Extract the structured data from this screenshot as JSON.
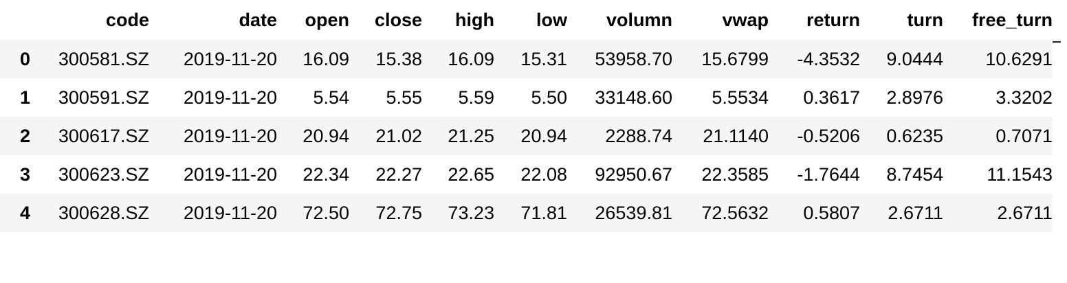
{
  "table": {
    "columns": [
      "",
      "code",
      "date",
      "open",
      "close",
      "high",
      "low",
      "volumn",
      "vwap",
      "return",
      "turn",
      "free_turn"
    ],
    "rows": [
      {
        "index": "0",
        "cells": [
          "300581.SZ",
          "2019-11-20",
          "16.09",
          "15.38",
          "16.09",
          "15.31",
          "53958.70",
          "15.6799",
          "-4.3532",
          "9.0444",
          "10.6291"
        ]
      },
      {
        "index": "1",
        "cells": [
          "300591.SZ",
          "2019-11-20",
          "5.54",
          "5.55",
          "5.59",
          "5.50",
          "33148.60",
          "5.5534",
          "0.3617",
          "2.8976",
          "3.3202"
        ]
      },
      {
        "index": "2",
        "cells": [
          "300617.SZ",
          "2019-11-20",
          "20.94",
          "21.02",
          "21.25",
          "20.94",
          "2288.74",
          "21.1140",
          "-0.5206",
          "0.6235",
          "0.7071"
        ]
      },
      {
        "index": "3",
        "cells": [
          "300623.SZ",
          "2019-11-20",
          "22.34",
          "22.27",
          "22.65",
          "22.08",
          "92950.67",
          "22.3585",
          "-1.7644",
          "8.7454",
          "11.1543"
        ]
      },
      {
        "index": "4",
        "cells": [
          "300628.SZ",
          "2019-11-20",
          "72.50",
          "72.75",
          "73.23",
          "71.81",
          "26539.81",
          "72.5632",
          "0.5807",
          "2.6711",
          "2.6711"
        ]
      }
    ]
  },
  "colors": {
    "stripe": "#f5f5f5",
    "rule": "#222222",
    "text": "#000000"
  }
}
